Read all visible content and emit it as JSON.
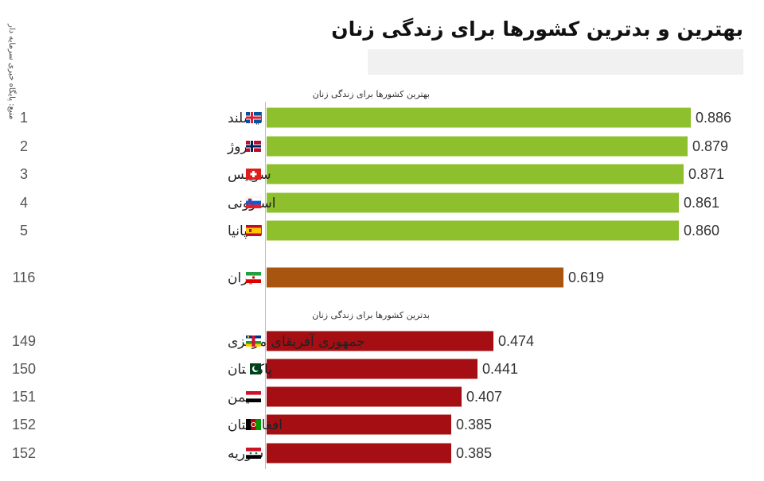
{
  "source": "منبع: پایگاه خبری سرمایه دار",
  "title": "بهترین و بدترین کشورها برای زندگی زنان",
  "chart_data": {
    "type": "bar",
    "orientation": "horizontal",
    "xlim": [
      0,
      0.95
    ],
    "grid": false,
    "colors": {
      "best": "#8dc02c",
      "iran": "#a8560f",
      "worst": "#a50e12"
    },
    "groups": [
      {
        "label": "بهترین کشورها برای زندگی زنان",
        "color_key": "best",
        "rows": [
          {
            "rank": "1",
            "country": "ایسلند",
            "value": 0.886,
            "value_label": "0.886",
            "flag": "iceland"
          },
          {
            "rank": "2",
            "country": "نروژ",
            "value": 0.879,
            "value_label": "0.879",
            "flag": "norway"
          },
          {
            "rank": "3",
            "country": "سوییس",
            "value": 0.871,
            "value_label": "0.871",
            "flag": "switzerland"
          },
          {
            "rank": "4",
            "country": "اسلوونی",
            "value": 0.861,
            "value_label": "0.861",
            "flag": "slovenia"
          },
          {
            "rank": "5",
            "country": "اسپانیا",
            "value": 0.86,
            "value_label": "0.860",
            "flag": "spain"
          }
        ]
      },
      {
        "label": "",
        "color_key": "iran",
        "rows": [
          {
            "rank": "116",
            "country": "ایران",
            "value": 0.619,
            "value_label": "0.619",
            "flag": "iran"
          }
        ]
      },
      {
        "label": "بدترین کشورها برای زندگی زنان",
        "color_key": "worst",
        "rows": [
          {
            "rank": "149",
            "country": "جمهوری آفریقای مرکزی",
            "value": 0.474,
            "value_label": "0.474",
            "flag": "car"
          },
          {
            "rank": "150",
            "country": "پاکستان",
            "value": 0.441,
            "value_label": "0.441",
            "flag": "pakistan"
          },
          {
            "rank": "151",
            "country": "یمن",
            "value": 0.407,
            "value_label": "0.407",
            "flag": "yemen"
          },
          {
            "rank": "152",
            "country": "افغانستان",
            "value": 0.385,
            "value_label": "0.385",
            "flag": "afghanistan"
          },
          {
            "rank": "152",
            "country": "سوریه",
            "value": 0.385,
            "value_label": "0.385",
            "flag": "syria"
          }
        ]
      }
    ]
  }
}
